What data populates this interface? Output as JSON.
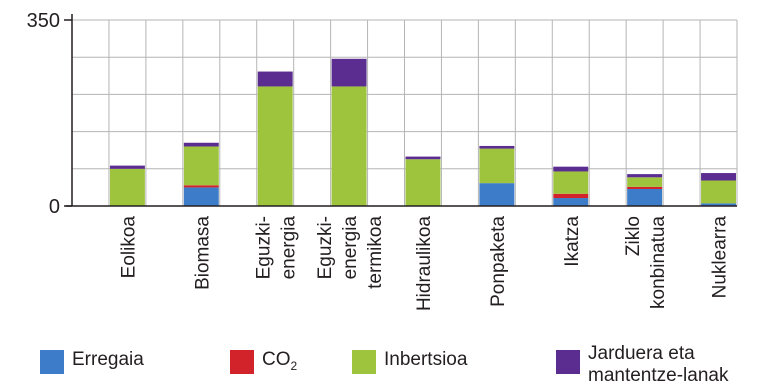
{
  "chart_data": {
    "type": "bar",
    "stacked": true,
    "categories": [
      [
        "Eolikoa"
      ],
      [
        "Biomasa"
      ],
      [
        "Eguzki-",
        "energia"
      ],
      [
        "Eguzki-",
        "energia",
        "termikoa"
      ],
      [
        "Hidraulikoa"
      ],
      [
        "Ponpaketa"
      ],
      [
        "Ikatza"
      ],
      [
        "Ziklo",
        "konbinatua"
      ],
      [
        "Nuklearra"
      ]
    ],
    "series": [
      {
        "name": "Erregaia",
        "color": "#3d7cc9",
        "values": [
          0,
          35,
          0,
          0,
          0,
          43,
          15,
          32,
          5
        ]
      },
      {
        "name": "CO",
        "color": "#d2232a",
        "values": [
          0,
          4,
          0,
          0,
          0,
          0,
          8,
          4,
          0
        ]
      },
      {
        "name": "Inbertsioa",
        "color": "#9dc43c",
        "values": [
          70,
          73,
          225,
          225,
          88,
          65,
          42,
          18,
          43
        ]
      },
      {
        "name": "Jarduera eta mantentze-lanak",
        "color": "#5c2d91",
        "values": [
          6,
          7,
          28,
          52,
          5,
          5,
          9,
          6,
          14
        ]
      }
    ],
    "ylim": [
      0,
      350
    ],
    "yticks": [
      0,
      350
    ],
    "grid": true,
    "legend_position": "bottom"
  },
  "legend": {
    "items": [
      {
        "label": "Erregaia",
        "color": "#3d7cc9"
      },
      {
        "label": "CO",
        "sub": "2",
        "color": "#d2232a"
      },
      {
        "label": "Inbertsioa",
        "color": "#9dc43c"
      },
      {
        "label_lines": [
          "Jarduera eta",
          "mantentze-lanak"
        ],
        "color": "#5c2d91"
      }
    ]
  }
}
